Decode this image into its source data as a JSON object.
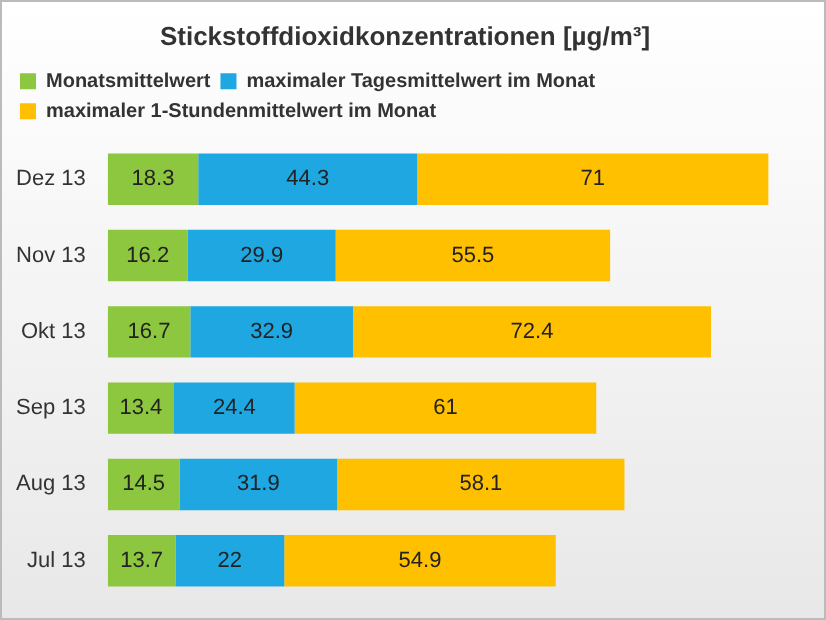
{
  "chart_data": {
    "type": "bar",
    "orientation": "horizontal",
    "stacked": true,
    "title": "Stickstoffdioxidkonzentrationen [µg/m³]",
    "categories": [
      "Dez 13",
      "Nov 13",
      "Okt 13",
      "Sep 13",
      "Aug 13",
      "Jul 13"
    ],
    "series": [
      {
        "name": "Monatsmittelwert",
        "color": "#8dc63f",
        "values": [
          18.3,
          16.2,
          16.7,
          13.4,
          14.5,
          13.7
        ]
      },
      {
        "name": "maximaler Tagesmittelwert im Monat",
        "color": "#1ea7e1",
        "values": [
          44.3,
          29.9,
          32.9,
          24.4,
          31.9,
          22
        ]
      },
      {
        "name": "maximaler 1-Stundenmittelwert im Monat",
        "color": "#ffc000",
        "values": [
          71,
          55.5,
          72.4,
          61,
          58.1,
          54.9
        ]
      }
    ],
    "data_labels": true,
    "legend": "top left",
    "grid": false,
    "tick_labels": "y"
  }
}
